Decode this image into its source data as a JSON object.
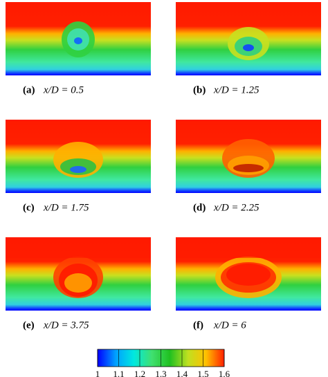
{
  "panels": [
    {
      "label": "(a)",
      "caption": "x/D = 0.5"
    },
    {
      "label": "(b)",
      "caption": "x/D = 1.25"
    },
    {
      "label": "(c)",
      "caption": "x/D = 1.75"
    },
    {
      "label": "(d)",
      "caption": "x/D = 2.25"
    },
    {
      "label": "(e)",
      "caption": "x/D = 3.75"
    },
    {
      "label": "(f)",
      "caption": "x/D = 6"
    }
  ],
  "colorbar": {
    "lim": [
      1,
      1.6
    ],
    "ticks": [
      1,
      1.1,
      1.2,
      1.3,
      1.4,
      1.5,
      1.6
    ],
    "colormap": [
      "#0000ff",
      "#00a0ff",
      "#00e8e0",
      "#40e070",
      "#20c020",
      "#c0e020",
      "#ffc000",
      "#ff2000"
    ]
  }
}
